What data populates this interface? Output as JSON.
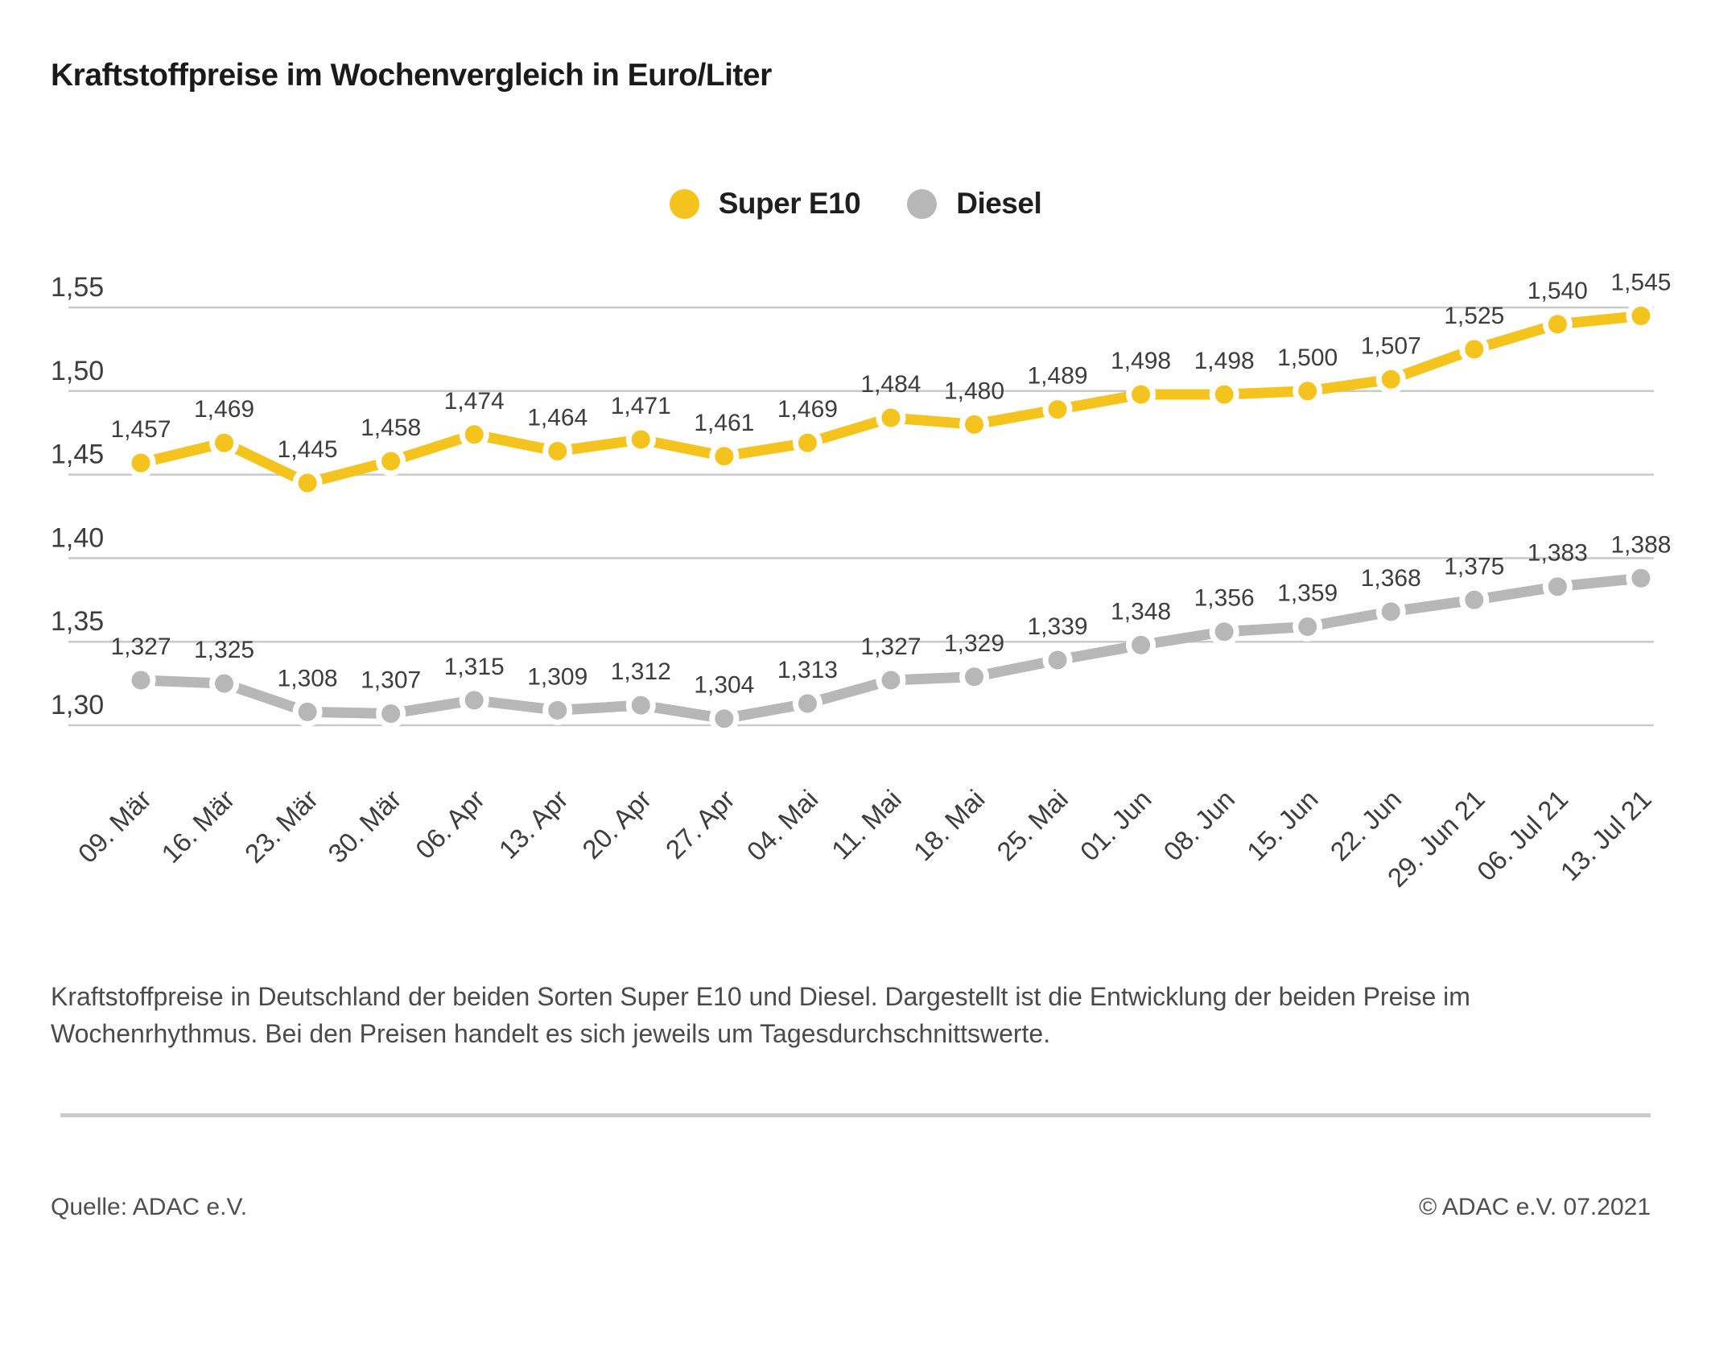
{
  "title": "Kraftstoffpreise im Wochenvergleich in Euro/Liter",
  "legend": [
    {
      "label": "Super E10",
      "color": "#F5C31D"
    },
    {
      "label": "Diesel",
      "color": "#B7B7B7"
    }
  ],
  "colors": {
    "gridline": "#c9c9c9",
    "axis_text": "#3d3d3d",
    "data_label_text": "#3d3d3d",
    "marker_halo": "#ffffff"
  },
  "chart_data": {
    "type": "line",
    "title": "Kraftstoffpreise im Wochenvergleich in Euro/Liter",
    "categories": [
      "09. Mär",
      "16. Mär",
      "23. Mär",
      "30. Mär",
      "06. Apr",
      "13. Apr",
      "20. Apr",
      "27. Apr",
      "04. Mai",
      "11. Mai",
      "18. Mai",
      "25. Mai",
      "01. Jun",
      "08. Jun",
      "15. Jun",
      "22. Jun",
      "29. Jun 21",
      "06. Jul 21",
      "13. Jul 21"
    ],
    "series": [
      {
        "name": "Super E10",
        "color": "#F5C31D",
        "values": [
          1.457,
          1.469,
          1.445,
          1.458,
          1.474,
          1.464,
          1.471,
          1.461,
          1.469,
          1.484,
          1.48,
          1.489,
          1.498,
          1.498,
          1.5,
          1.507,
          1.525,
          1.54,
          1.545
        ]
      },
      {
        "name": "Diesel",
        "color": "#B7B7B7",
        "values": [
          1.327,
          1.325,
          1.308,
          1.307,
          1.315,
          1.309,
          1.312,
          1.304,
          1.313,
          1.327,
          1.329,
          1.339,
          1.348,
          1.356,
          1.359,
          1.368,
          1.375,
          1.383,
          1.388
        ]
      }
    ],
    "ylim": [
      1.3,
      1.55
    ],
    "ytick_step": 0.05,
    "ytick_labels": [
      "1,55",
      "1,50",
      "1,45",
      "1,40",
      "1,35",
      "1,30"
    ],
    "grid": "horizontal",
    "legend_position": "top-center",
    "value_labels": "above-points, German decimal comma, 3 decimals",
    "xlabel": "",
    "ylabel": "Euro/Liter"
  },
  "footer": {
    "description": "Kraftstoffpreise in Deutschland der beiden Sorten Super E10 und Diesel. Dargestellt ist die Entwicklung der beiden Preise im Wochenrhythmus. Bei den Preisen handelt es sich jeweils um Tagesdurchschnittswerte.",
    "source": "Quelle: ADAC e.V.",
    "copyright": "© ADAC e.V. 07.2021"
  }
}
